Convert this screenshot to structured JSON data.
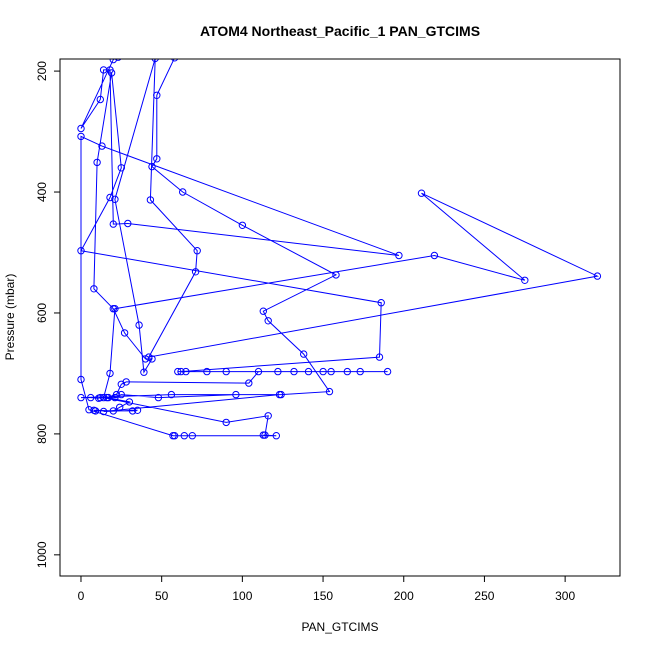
{
  "chart_data": {
    "type": "scatter",
    "title": "ATOM4 Northeast_Pacific_1 PAN_GTCIMS",
    "xlabel": "PAN_GTCIMS",
    "ylabel": "Pressure (mbar)",
    "xlim": [
      -13,
      334
    ],
    "ylim": [
      1035,
      180
    ],
    "y_reversed": true,
    "grid": false,
    "point_style": "open-circle",
    "line_style": "connected",
    "color": "#0000ff",
    "x_ticks": [
      0,
      50,
      100,
      150,
      200,
      250,
      300
    ],
    "y_ticks": [
      200,
      400,
      600,
      800,
      1000
    ],
    "points": [
      {
        "x": 58,
        "y": 178
      },
      {
        "x": 47,
        "y": 240
      },
      {
        "x": 47,
        "y": 345
      },
      {
        "x": 44,
        "y": 358
      },
      {
        "x": 63,
        "y": 400
      },
      {
        "x": 100,
        "y": 455
      },
      {
        "x": 158,
        "y": 537
      },
      {
        "x": 113,
        "y": 597
      },
      {
        "x": 116,
        "y": 613
      },
      {
        "x": 138,
        "y": 668
      },
      {
        "x": 154,
        "y": 730
      },
      {
        "x": 124,
        "y": 735
      },
      {
        "x": 96,
        "y": 735
      },
      {
        "x": 48,
        "y": 740
      },
      {
        "x": 25,
        "y": 735
      },
      {
        "x": 21,
        "y": 740
      },
      {
        "x": 17,
        "y": 740
      },
      {
        "x": 12,
        "y": 740
      },
      {
        "x": 11,
        "y": 741
      },
      {
        "x": 6,
        "y": 740
      },
      {
        "x": 0,
        "y": 740
      },
      {
        "x": 56,
        "y": 735
      },
      {
        "x": 123,
        "y": 735
      },
      {
        "x": 14,
        "y": 763
      },
      {
        "x": 35,
        "y": 761
      },
      {
        "x": 32,
        "y": 762
      },
      {
        "x": 9,
        "y": 762
      },
      {
        "x": 8,
        "y": 761
      },
      {
        "x": 20,
        "y": 762
      },
      {
        "x": 24,
        "y": 756
      },
      {
        "x": 30,
        "y": 747
      },
      {
        "x": 16,
        "y": 740
      },
      {
        "x": 22,
        "y": 735
      },
      {
        "x": 25,
        "y": 718
      },
      {
        "x": 28,
        "y": 714
      },
      {
        "x": 104,
        "y": 716
      },
      {
        "x": 110,
        "y": 697
      },
      {
        "x": 122,
        "y": 697
      },
      {
        "x": 132,
        "y": 697
      },
      {
        "x": 141,
        "y": 697
      },
      {
        "x": 150,
        "y": 697
      },
      {
        "x": 155,
        "y": 697
      },
      {
        "x": 165,
        "y": 697
      },
      {
        "x": 173,
        "y": 697
      },
      {
        "x": 190,
        "y": 697
      },
      {
        "x": 90,
        "y": 697
      },
      {
        "x": 78,
        "y": 697
      },
      {
        "x": 65,
        "y": 697
      },
      {
        "x": 60,
        "y": 697
      },
      {
        "x": 62,
        "y": 697
      },
      {
        "x": 185,
        "y": 673
      },
      {
        "x": 186,
        "y": 583
      },
      {
        "x": 0,
        "y": 497
      },
      {
        "x": 18,
        "y": 409
      },
      {
        "x": 25,
        "y": 360
      },
      {
        "x": 19,
        "y": 203
      },
      {
        "x": 10,
        "y": 351
      },
      {
        "x": 8,
        "y": 560
      },
      {
        "x": 20,
        "y": 593
      },
      {
        "x": 27,
        "y": 633
      },
      {
        "x": 40,
        "y": 676
      },
      {
        "x": 44,
        "y": 676
      },
      {
        "x": 39,
        "y": 698
      },
      {
        "x": 36,
        "y": 620
      },
      {
        "x": 21,
        "y": 412
      },
      {
        "x": 46,
        "y": 179
      },
      {
        "x": 43,
        "y": 413
      },
      {
        "x": 72,
        "y": 497
      },
      {
        "x": 71,
        "y": 532
      },
      {
        "x": 42,
        "y": 673
      },
      {
        "x": 320,
        "y": 539
      },
      {
        "x": 211,
        "y": 402
      },
      {
        "x": 275,
        "y": 546
      },
      {
        "x": 219,
        "y": 505
      },
      {
        "x": 21,
        "y": 593
      },
      {
        "x": 18,
        "y": 700
      },
      {
        "x": 14,
        "y": 740
      },
      {
        "x": 90,
        "y": 781
      },
      {
        "x": 116,
        "y": 770
      },
      {
        "x": 114,
        "y": 802
      },
      {
        "x": 113,
        "y": 802
      },
      {
        "x": 121,
        "y": 803
      },
      {
        "x": 69,
        "y": 803
      },
      {
        "x": 64,
        "y": 803
      },
      {
        "x": 58,
        "y": 803
      },
      {
        "x": 57,
        "y": 803
      },
      {
        "x": 5,
        "y": 760
      },
      {
        "x": 0,
        "y": 710
      },
      {
        "x": 0,
        "y": 308
      },
      {
        "x": 13,
        "y": 324
      },
      {
        "x": 197,
        "y": 505
      },
      {
        "x": 29,
        "y": 452
      },
      {
        "x": 20,
        "y": 453
      },
      {
        "x": 18,
        "y": 198
      },
      {
        "x": 14,
        "y": 198
      },
      {
        "x": 12,
        "y": 247
      },
      {
        "x": 0,
        "y": 295
      },
      {
        "x": 20,
        "y": 181
      },
      {
        "x": 23,
        "y": 177
      }
    ]
  }
}
